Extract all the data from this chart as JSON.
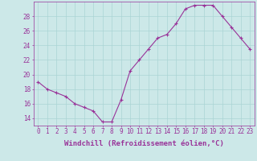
{
  "xlabel": "Windchill (Refroidissement éolien,°C)",
  "x": [
    0,
    1,
    2,
    3,
    4,
    5,
    6,
    7,
    8,
    9,
    10,
    11,
    12,
    13,
    14,
    15,
    16,
    17,
    18,
    19,
    20,
    21,
    22,
    23
  ],
  "y": [
    19.0,
    18.0,
    17.5,
    17.0,
    16.0,
    15.5,
    15.0,
    13.5,
    13.5,
    16.5,
    20.5,
    22.0,
    23.5,
    25.0,
    25.5,
    27.0,
    29.0,
    29.5,
    29.5,
    29.5,
    28.0,
    26.5,
    25.0,
    23.5
  ],
  "line_color": "#993399",
  "marker": "+",
  "marker_color": "#993399",
  "bg_color": "#cce8e8",
  "grid_color": "#aad4d4",
  "axis_color": "#993399",
  "tick_color": "#993399",
  "label_color": "#993399",
  "ylim": [
    13,
    30
  ],
  "yticks": [
    14,
    16,
    18,
    20,
    22,
    24,
    26,
    28
  ],
  "xticks": [
    0,
    1,
    2,
    3,
    4,
    5,
    6,
    7,
    8,
    9,
    10,
    11,
    12,
    13,
    14,
    15,
    16,
    17,
    18,
    19,
    20,
    21,
    22,
    23
  ],
  "tick_fontsize": 5.5,
  "label_fontsize": 6.5
}
